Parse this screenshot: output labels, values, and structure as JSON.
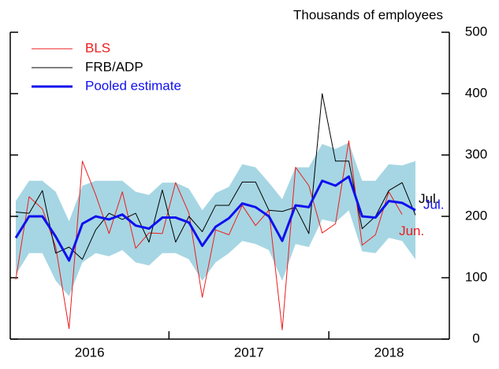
{
  "chart_data": {
    "type": "line",
    "y_axis_label": "Thousands of employees",
    "categories": [
      "2016",
      null,
      null,
      null,
      null,
      null,
      null,
      null,
      null,
      null,
      null,
      null,
      "2017",
      null,
      null,
      null,
      null,
      null,
      null,
      null,
      null,
      null,
      null,
      null,
      "2018",
      null,
      null,
      null,
      null,
      null,
      null
    ],
    "band": {
      "color": "#a6d6e3",
      "upper": [
        225,
        258,
        258,
        240,
        192,
        250,
        258,
        258,
        258,
        240,
        235,
        255,
        255,
        245,
        210,
        238,
        248,
        285,
        280,
        255,
        228,
        280,
        280,
        318,
        310,
        320,
        258,
        258,
        285,
        283,
        290
      ],
      "lower": [
        105,
        140,
        140,
        95,
        70,
        125,
        140,
        135,
        145,
        125,
        120,
        140,
        140,
        130,
        95,
        125,
        140,
        160,
        155,
        145,
        95,
        155,
        150,
        195,
        190,
        210,
        143,
        140,
        165,
        160,
        130
      ]
    },
    "series": [
      {
        "name": "BLS",
        "color": "#ee1c1c",
        "width": 1,
        "end_label": "Jun.",
        "values": [
          97,
          232,
          212,
          150,
          17,
          290,
          235,
          172,
          240,
          148,
          173,
          172,
          255,
          205,
          68,
          178,
          170,
          218,
          185,
          210,
          15,
          280,
          250,
          173,
          188,
          323,
          153,
          170,
          240,
          203,
          null
        ]
      },
      {
        "name": "FRB/ADP",
        "color": "#000000",
        "width": 1,
        "end_label": "Jul.",
        "values": [
          207,
          205,
          242,
          140,
          150,
          130,
          178,
          205,
          195,
          205,
          158,
          243,
          158,
          200,
          175,
          218,
          218,
          256,
          256,
          210,
          208,
          215,
          172,
          400,
          290,
          290,
          180,
          200,
          242,
          255,
          202
        ]
      },
      {
        "name": "Pooled estimate",
        "color": "#1010ee",
        "width": 3,
        "end_label": "Jul.",
        "values": [
          165,
          200,
          200,
          167,
          128,
          188,
          200,
          195,
          203,
          185,
          180,
          198,
          198,
          190,
          152,
          183,
          197,
          221,
          215,
          200,
          160,
          218,
          215,
          258,
          250,
          265,
          200,
          198,
          225,
          222,
          210
        ]
      }
    ],
    "ylim": [
      0,
      500
    ],
    "yticks": [
      0,
      100,
      200,
      300,
      400,
      500
    ]
  }
}
